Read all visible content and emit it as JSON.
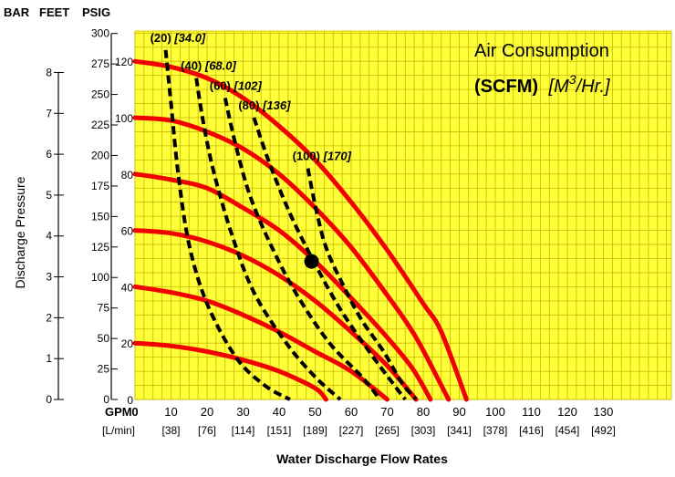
{
  "chart_data": {
    "type": "line",
    "headers": {
      "bar": "BAR",
      "feet": "FEET",
      "psig": "PSIG"
    },
    "x_gpm_label": "GPM",
    "x_lpm_label": "[L/min]",
    "xlabel": "Water Discharge Flow Rates",
    "ylabel": "Discharge Pressure",
    "legend_title": "Air Consumption",
    "legend_unit_bold": "(SCFM)",
    "legend_unit_italic_prefix": "[M",
    "legend_unit_sup": "3",
    "legend_unit_italic_suffix": "/Hr.]",
    "xlim": [
      0,
      140
    ],
    "ylim_psig": [
      0,
      130
    ],
    "x_ticks": [
      {
        "gpm": "0",
        "lpm": ""
      },
      {
        "gpm": "10",
        "lpm": "[38]"
      },
      {
        "gpm": "20",
        "lpm": "[76]"
      },
      {
        "gpm": "30",
        "lpm": "[114]"
      },
      {
        "gpm": "40",
        "lpm": "[151]"
      },
      {
        "gpm": "50",
        "lpm": "[189]"
      },
      {
        "gpm": "60",
        "lpm": "[227]"
      },
      {
        "gpm": "70",
        "lpm": "[265]"
      },
      {
        "gpm": "80",
        "lpm": "[303]"
      },
      {
        "gpm": "90",
        "lpm": "[341]"
      },
      {
        "gpm": "100",
        "lpm": "[378]"
      },
      {
        "gpm": "110",
        "lpm": "[416]"
      },
      {
        "gpm": "120",
        "lpm": "[454]"
      },
      {
        "gpm": "130",
        "lpm": "[492]"
      }
    ],
    "feet_ticks": [
      "0",
      "25",
      "50",
      "75",
      "100",
      "125",
      "150",
      "175",
      "200",
      "225",
      "250",
      "275",
      "300"
    ],
    "bar_ticks": [
      "0",
      "1",
      "2",
      "3",
      "4",
      "5",
      "6",
      "7",
      "8"
    ],
    "psig_ticks": [
      "0",
      "20",
      "40",
      "60",
      "80",
      "100",
      "120"
    ],
    "pressure_series": [
      {
        "name": "120",
        "points": [
          [
            0,
            120
          ],
          [
            10,
            118
          ],
          [
            20,
            114
          ],
          [
            30,
            107
          ],
          [
            40,
            97
          ],
          [
            50,
            85
          ],
          [
            60,
            70
          ],
          [
            70,
            53
          ],
          [
            80,
            34
          ],
          [
            85,
            24
          ],
          [
            92,
            0
          ]
        ]
      },
      {
        "name": "100",
        "points": [
          [
            0,
            100
          ],
          [
            10,
            99
          ],
          [
            20,
            95
          ],
          [
            30,
            89
          ],
          [
            40,
            80
          ],
          [
            50,
            68
          ],
          [
            60,
            54
          ],
          [
            70,
            37
          ],
          [
            78,
            22
          ],
          [
            87,
            0
          ]
        ]
      },
      {
        "name": "80",
        "points": [
          [
            0,
            80
          ],
          [
            10,
            78
          ],
          [
            20,
            75
          ],
          [
            30,
            68
          ],
          [
            40,
            60
          ],
          [
            50,
            49
          ],
          [
            60,
            36
          ],
          [
            70,
            22
          ],
          [
            77,
            11
          ],
          [
            82,
            0
          ]
        ]
      },
      {
        "name": "60",
        "points": [
          [
            0,
            60
          ],
          [
            10,
            59
          ],
          [
            20,
            56
          ],
          [
            30,
            51
          ],
          [
            40,
            44
          ],
          [
            50,
            35
          ],
          [
            60,
            24
          ],
          [
            70,
            12
          ],
          [
            78,
            0
          ]
        ]
      },
      {
        "name": "40",
        "points": [
          [
            0,
            40
          ],
          [
            10,
            38
          ],
          [
            20,
            35
          ],
          [
            30,
            30
          ],
          [
            40,
            24
          ],
          [
            50,
            17
          ],
          [
            60,
            10
          ],
          [
            70,
            0
          ]
        ]
      },
      {
        "name": "20",
        "points": [
          [
            0,
            20
          ],
          [
            10,
            19
          ],
          [
            20,
            17
          ],
          [
            30,
            14
          ],
          [
            40,
            10
          ],
          [
            50,
            4
          ],
          [
            53,
            0
          ]
        ]
      }
    ],
    "air_series": [
      {
        "label": "(20)",
        "metric": "[34.0]",
        "points": [
          [
            8.5,
            124
          ],
          [
            10,
            105
          ],
          [
            12,
            80
          ],
          [
            15,
            55
          ],
          [
            20,
            34
          ],
          [
            28,
            15
          ],
          [
            36,
            5
          ],
          [
            43,
            0
          ]
        ]
      },
      {
        "label": "(40)",
        "metric": "[68.0]",
        "points": [
          [
            17,
            114
          ],
          [
            19,
            98
          ],
          [
            22,
            80
          ],
          [
            27,
            58
          ],
          [
            33,
            38
          ],
          [
            42,
            20
          ],
          [
            50,
            8
          ],
          [
            57,
            0
          ]
        ]
      },
      {
        "label": "(60)",
        "metric": "[102]",
        "points": [
          [
            25,
            107
          ],
          [
            28,
            90
          ],
          [
            32,
            72
          ],
          [
            38,
            54
          ],
          [
            45,
            37
          ],
          [
            54,
            20
          ],
          [
            63,
            8
          ],
          [
            68,
            0
          ]
        ]
      },
      {
        "label": "(80)",
        "metric": "[136]",
        "points": [
          [
            33,
            100
          ],
          [
            37,
            85
          ],
          [
            43,
            66
          ],
          [
            50,
            48
          ],
          [
            57,
            32
          ],
          [
            65,
            17
          ],
          [
            72,
            5
          ],
          [
            75,
            0
          ]
        ]
      },
      {
        "label": "(100)",
        "metric": "[170]",
        "points": [
          [
            48,
            82
          ],
          [
            50,
            69
          ],
          [
            53,
            54
          ],
          [
            58,
            40
          ],
          [
            63,
            28
          ],
          [
            69,
            17
          ],
          [
            74,
            6
          ],
          [
            78,
            0
          ]
        ]
      }
    ],
    "operating_point": {
      "gpm": 49,
      "psig": 49
    },
    "grid": true
  }
}
